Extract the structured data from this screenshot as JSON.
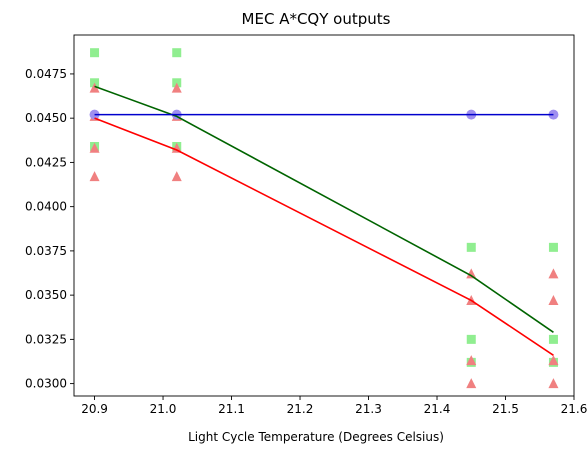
{
  "chart_data": {
    "type": "scatter",
    "title": "MEC A*CQY outputs",
    "xlabel": "Light Cycle Temperature (Degrees Celsius)",
    "ylabel": "",
    "xlim": [
      20.87,
      21.6
    ],
    "ylim": [
      0.0293,
      0.0497
    ],
    "xticks": [
      "20.9",
      "21.0",
      "21.1",
      "21.2",
      "21.3",
      "21.4",
      "21.5",
      "21.6"
    ],
    "yticks": [
      "0.0300",
      "0.0325",
      "0.0350",
      "0.0375",
      "0.0400",
      "0.0425",
      "0.0450",
      "0.0475"
    ],
    "series": [
      {
        "marker": "square",
        "color": "#90ee90",
        "points": [
          [
            20.9,
            0.0487
          ],
          [
            20.9,
            0.047
          ],
          [
            20.9,
            0.0434
          ],
          [
            21.02,
            0.0487
          ],
          [
            21.02,
            0.047
          ],
          [
            21.02,
            0.0434
          ],
          [
            21.45,
            0.0377
          ],
          [
            21.45,
            0.0325
          ],
          [
            21.45,
            0.0312
          ],
          [
            21.57,
            0.0377
          ],
          [
            21.57,
            0.0325
          ],
          [
            21.57,
            0.0312
          ]
        ],
        "trend": {
          "color": "#006400",
          "points": [
            [
              20.9,
              0.0468
            ],
            [
              21.02,
              0.0451
            ],
            [
              21.45,
              0.0361
            ],
            [
              21.57,
              0.0329
            ]
          ]
        }
      },
      {
        "marker": "triangle",
        "color": "#f08080",
        "points": [
          [
            20.9,
            0.0467
          ],
          [
            20.9,
            0.0451
          ],
          [
            20.9,
            0.0433
          ],
          [
            20.9,
            0.0417
          ],
          [
            21.02,
            0.0467
          ],
          [
            21.02,
            0.0451
          ],
          [
            21.02,
            0.0433
          ],
          [
            21.02,
            0.0417
          ],
          [
            21.45,
            0.0362
          ],
          [
            21.45,
            0.0347
          ],
          [
            21.45,
            0.0313
          ],
          [
            21.45,
            0.03
          ],
          [
            21.57,
            0.0362
          ],
          [
            21.57,
            0.0347
          ],
          [
            21.57,
            0.0313
          ],
          [
            21.57,
            0.03
          ]
        ],
        "trend": {
          "color": "#ff0000",
          "points": [
            [
              20.9,
              0.045
            ],
            [
              21.02,
              0.0432
            ],
            [
              21.45,
              0.0347
            ],
            [
              21.57,
              0.0316
            ]
          ]
        }
      },
      {
        "marker": "circle",
        "color": "#9f8fef",
        "points": [
          [
            20.9,
            0.0452
          ],
          [
            21.02,
            0.0452
          ],
          [
            21.45,
            0.0452
          ],
          [
            21.57,
            0.0452
          ]
        ],
        "trend": {
          "color": "#0000cd",
          "points": [
            [
              20.9,
              0.0452
            ],
            [
              21.57,
              0.0452
            ]
          ]
        }
      }
    ]
  }
}
